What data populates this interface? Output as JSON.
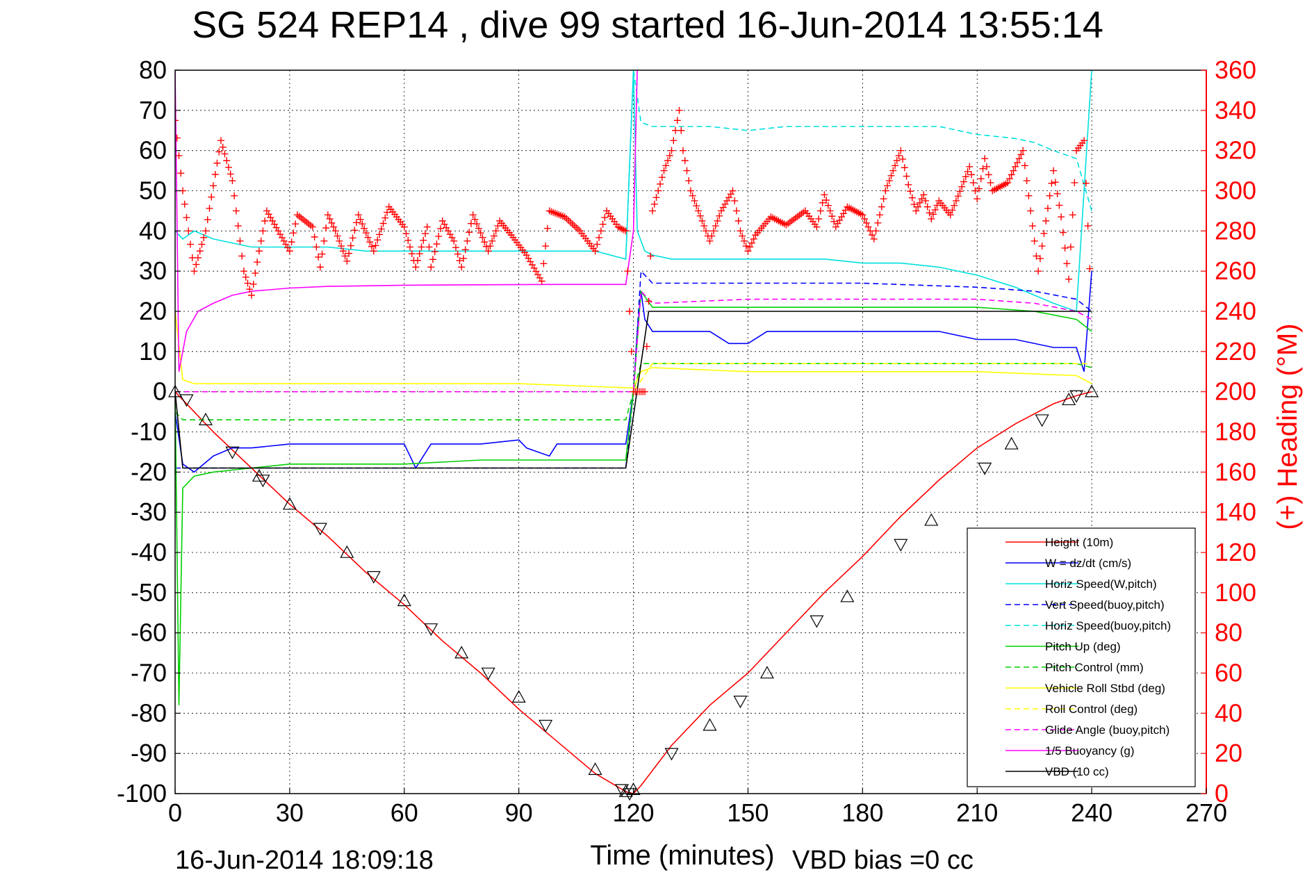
{
  "header": {
    "title": "SG 524   REP14  , dive 99 started 16-Jun-2014 13:55:14"
  },
  "footer": {
    "timestamp": "16-Jun-2014 18:09:18",
    "vbd_bias": "VBD bias =0 cc"
  },
  "chart_data": {
    "type": "line",
    "title": "SG 524   REP14  , dive 99 started 16-Jun-2014 13:55:14",
    "xlabel": "Time (minutes)",
    "ylabel": "",
    "y2label": "(+) Heading (°M)",
    "xlim": [
      0,
      270
    ],
    "ylim": [
      -100,
      80
    ],
    "y2lim": [
      0,
      360
    ],
    "x_ticks": [
      "0",
      "30",
      "60",
      "90",
      "120",
      "150",
      "180",
      "210",
      "240",
      "270"
    ],
    "y_ticks": [
      "80",
      "70",
      "60",
      "50",
      "40",
      "30",
      "20",
      "10",
      "0",
      "-10",
      "-20",
      "-30",
      "-40",
      "-50",
      "-60",
      "-70",
      "-80",
      "-90",
      "-100"
    ],
    "y2_ticks": [
      "360",
      "340",
      "320",
      "300",
      "280",
      "260",
      "240",
      "220",
      "200",
      "180",
      "160",
      "140",
      "120",
      "100",
      "80",
      "60",
      "40",
      "20",
      "0"
    ],
    "grid": true,
    "legend_position": "bottom-right",
    "colors": {
      "red": "#ff0000",
      "blue": "#0000ff",
      "cyan": "#00e0e0",
      "green": "#00d000",
      "yellow": "#ffff00",
      "magenta": "#ff00ff",
      "black": "#000000"
    },
    "series": [
      {
        "name": "Height (10m)",
        "color": "#ff0000",
        "style": "solid",
        "x": [
          0,
          10,
          20,
          30,
          40,
          50,
          60,
          70,
          80,
          90,
          100,
          110,
          118,
          120,
          122,
          130,
          140,
          150,
          160,
          170,
          180,
          190,
          200,
          210,
          220,
          230,
          236,
          240
        ],
        "y": [
          0,
          -10,
          -19,
          -28,
          -36,
          -45,
          -53,
          -62,
          -70,
          -79,
          -87,
          -95,
          -99.5,
          -100,
          -98,
          -88,
          -78,
          -70,
          -60,
          -50,
          -41,
          -31,
          -22,
          -14,
          -8,
          -3,
          -1,
          0
        ]
      },
      {
        "name": "W = dz/dt (cm/s)",
        "color": "#0000ff",
        "style": "solid",
        "x": [
          0,
          2,
          5,
          10,
          15,
          20,
          30,
          40,
          50,
          60,
          63,
          67,
          80,
          90,
          92,
          98,
          100,
          110,
          117,
          118,
          120,
          121,
          122,
          123,
          125,
          130,
          140,
          145,
          150,
          155,
          160,
          170,
          180,
          190,
          200,
          210,
          220,
          230,
          236,
          238,
          240
        ],
        "y": [
          -5,
          -18,
          -20,
          -16,
          -14,
          -14,
          -13,
          -13,
          -13,
          -13,
          -19,
          -13,
          -13,
          -12,
          -14,
          -16,
          -13,
          -13,
          -13,
          -13,
          0,
          15,
          25,
          18,
          15,
          15,
          15,
          12,
          12,
          15,
          15,
          15,
          15,
          15,
          15,
          13,
          13,
          11,
          11,
          5,
          30
        ]
      },
      {
        "name": "Horiz Speed(W,pitch)",
        "color": "#00e0e0",
        "style": "solid",
        "x": [
          0,
          2,
          5,
          10,
          20,
          30,
          40,
          50,
          60,
          70,
          80,
          90,
          100,
          110,
          118,
          120,
          121,
          123,
          125,
          130,
          140,
          150,
          160,
          170,
          180,
          190,
          200,
          210,
          220,
          225,
          230,
          236,
          240
        ],
        "y": [
          40,
          38,
          40,
          38,
          36,
          36,
          36,
          35,
          35,
          35,
          35,
          35,
          35,
          35,
          33,
          80,
          40,
          35,
          34,
          33,
          33,
          33,
          33,
          33,
          32,
          32,
          31,
          29,
          26,
          24,
          22,
          20,
          80
        ]
      },
      {
        "name": "Vert Speed(buoy,pitch)",
        "color": "#0000ff",
        "style": "dashed",
        "x": [
          0,
          118,
          120,
          122,
          125,
          150,
          180,
          210,
          225,
          236,
          240
        ],
        "y": [
          -19,
          -19,
          0,
          30,
          27,
          27,
          27,
          26,
          25,
          23,
          20
        ]
      },
      {
        "name": "Horiz Speed(buoy,pitch)",
        "color": "#00e0e0",
        "style": "dashed",
        "x": [
          118,
          120,
          122,
          125,
          140,
          150,
          160,
          170,
          180,
          190,
          200,
          210,
          220,
          225,
          230,
          236,
          240
        ],
        "y": [
          33,
          80,
          67,
          66,
          66,
          65,
          66,
          66,
          66,
          66,
          66,
          64,
          63,
          62,
          60,
          58,
          45
        ]
      },
      {
        "name": "Pitch Up (deg)",
        "color": "#00d000",
        "style": "solid",
        "x": [
          0,
          1,
          2,
          5,
          10,
          20,
          30,
          60,
          80,
          100,
          118,
          120,
          122,
          125,
          150,
          180,
          210,
          225,
          236,
          240
        ],
        "y": [
          0,
          -78,
          -24,
          -21,
          -20,
          -19,
          -18,
          -18,
          -17,
          -17,
          -17,
          0,
          25,
          21,
          21,
          21,
          21,
          20,
          18,
          15
        ]
      },
      {
        "name": "Pitch Control (mm)",
        "color": "#00d000",
        "style": "dashed",
        "x": [
          0,
          2,
          10,
          30,
          60,
          90,
          118,
          120,
          122,
          125,
          150,
          180,
          210,
          225,
          236,
          240
        ],
        "y": [
          -5,
          -7,
          -7,
          -7,
          -7,
          -7,
          -7,
          0,
          7,
          7,
          7,
          7,
          7,
          7,
          7,
          6
        ]
      },
      {
        "name": "Vehicle Roll Stbd (deg)",
        "color": "#ffff00",
        "style": "solid",
        "x": [
          0,
          2,
          5,
          30,
          60,
          90,
          118,
          120,
          122,
          125,
          150,
          180,
          210,
          236,
          240
        ],
        "y": [
          20,
          3,
          2,
          2,
          2,
          2,
          1,
          1,
          5,
          6,
          5,
          5,
          5,
          4,
          2
        ]
      },
      {
        "name": "Roll Control (deg)",
        "color": "#ffff00",
        "style": "dashed",
        "x": [
          0,
          118,
          120,
          125,
          240
        ],
        "y": [
          0,
          0,
          0,
          7,
          7
        ]
      },
      {
        "name": "Glide Angle (buoy,pitch)",
        "color": "#ff00ff",
        "style": "dashed",
        "x": [
          0,
          118,
          120,
          122,
          125,
          150,
          180,
          210,
          225,
          236,
          240
        ],
        "y": [
          0,
          0,
          0,
          25,
          22,
          23,
          23,
          23,
          22,
          20,
          18
        ]
      },
      {
        "name": "1/5 Buoyancy (g)",
        "color": "#ff00ff",
        "style": "solid",
        "x": [
          0,
          1,
          3,
          6,
          10,
          15,
          20,
          30,
          40,
          60,
          80,
          100,
          118,
          120,
          121
        ],
        "y": [
          80,
          5,
          15,
          20,
          22,
          24,
          25,
          25.8,
          26.2,
          26.5,
          26.6,
          26.7,
          26.7,
          40,
          80
        ]
      },
      {
        "name": "VBD (10 cc)",
        "color": "#000000",
        "style": "solid",
        "x": [
          0,
          2,
          118,
          124,
          125,
          240
        ],
        "y": [
          0,
          -19,
          -19,
          20,
          20,
          20
        ]
      }
    ],
    "heading_series": {
      "name": "(+) Heading (°M)",
      "color": "#ff0000",
      "marker": "+",
      "x": [
        0,
        2,
        5,
        8,
        12,
        15,
        18,
        20,
        22,
        24,
        27,
        30,
        32,
        36,
        38,
        40,
        42,
        45,
        48,
        52,
        56,
        60,
        63,
        66,
        67,
        70,
        73,
        75,
        78,
        82,
        85,
        88,
        92,
        96,
        98,
        102,
        106,
        110,
        113,
        116,
        118,
        120,
        122,
        123,
        125,
        128,
        130,
        132,
        133,
        135,
        138,
        140,
        143,
        146,
        148,
        150,
        152,
        156,
        160,
        165,
        168,
        170,
        173,
        176,
        180,
        183,
        186,
        190,
        192,
        194,
        196,
        198,
        200,
        203,
        206,
        208,
        210,
        212,
        214,
        218,
        222,
        224,
        226,
        230,
        232,
        234,
        236,
        238,
        240
      ],
      "y": [
        335,
        300,
        260,
        280,
        325,
        305,
        260,
        248,
        270,
        290,
        280,
        270,
        288,
        282,
        262,
        288,
        280,
        265,
        288,
        270,
        292,
        282,
        262,
        282,
        262,
        285,
        275,
        262,
        288,
        270,
        285,
        278,
        268,
        255,
        290,
        287,
        280,
        270,
        290,
        282,
        280,
        200,
        200,
        200,
        290,
        310,
        320,
        340,
        320,
        300,
        285,
        275,
        290,
        300,
        280,
        270,
        278,
        287,
        283,
        290,
        282,
        298,
        282,
        292,
        288,
        276,
        300,
        320,
        303,
        290,
        298,
        286,
        295,
        288,
        302,
        312,
        296,
        316,
        300,
        304,
        320,
        290,
        260,
        310,
        287,
        256,
        320,
        325,
        240
      ]
    },
    "triangle_markers": {
      "x": [
        0,
        3,
        8,
        15,
        22,
        23,
        30,
        38,
        45,
        52,
        60,
        67,
        75,
        82,
        90,
        97,
        110,
        117,
        118,
        119,
        120,
        130,
        140,
        148,
        155,
        168,
        176,
        190,
        198,
        212,
        219,
        227,
        234,
        236,
        240
      ],
      "y": [
        0,
        -2,
        -7,
        -15,
        -21,
        -22,
        -28,
        -34,
        -40,
        -46,
        -52,
        -59,
        -65,
        -70,
        -76,
        -83,
        -94,
        -99,
        -99.5,
        -100,
        -99,
        -90,
        -83,
        -77,
        -70,
        -57,
        -51,
        -38,
        -32,
        -19,
        -13,
        -7,
        -2,
        -1,
        0
      ]
    }
  }
}
